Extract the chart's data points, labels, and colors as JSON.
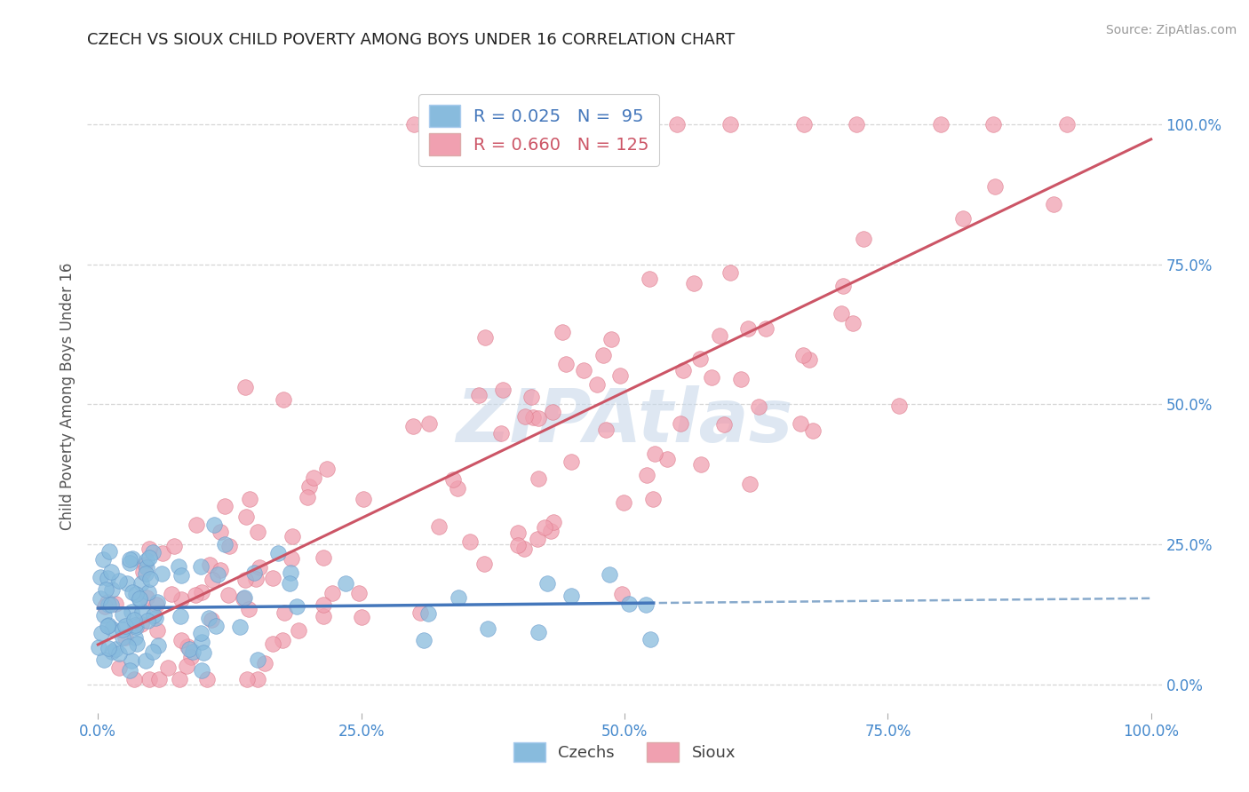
{
  "title": "CZECH VS SIOUX CHILD POVERTY AMONG BOYS UNDER 16 CORRELATION CHART",
  "source": "Source: ZipAtlas.com",
  "ylabel": "Child Poverty Among Boys Under 16",
  "watermark": "ZIPAtlas",
  "czech_color": "#88bbdd",
  "czech_color_edge": "#6699cc",
  "sioux_color": "#f0a0b0",
  "sioux_color_edge": "#dd7788",
  "czech_line_color": "#4477bb",
  "czech_line_color_dash": "#88aacc",
  "sioux_line_color": "#cc5566",
  "grid_color": "#cccccc",
  "background_color": "#ffffff",
  "title_color": "#222222",
  "axis_label_color": "#555555",
  "tick_color": "#4488cc",
  "watermark_color": "#c8d8ea",
  "R_czech": 0.025,
  "N_czech": 95,
  "R_sioux": 0.66,
  "N_sioux": 125,
  "xlim": [
    0.0,
    1.0
  ],
  "yticks": [
    0.0,
    0.25,
    0.5,
    0.75,
    1.0
  ],
  "ytick_labels": [
    "0.0%",
    "25.0%",
    "50.0%",
    "75.0%",
    "100.0%"
  ],
  "xticks": [
    0.0,
    0.25,
    0.5,
    0.75,
    1.0
  ],
  "xtick_labels": [
    "0.0%",
    "25.0%",
    "50.0%",
    "75.0%",
    "100.0%"
  ]
}
